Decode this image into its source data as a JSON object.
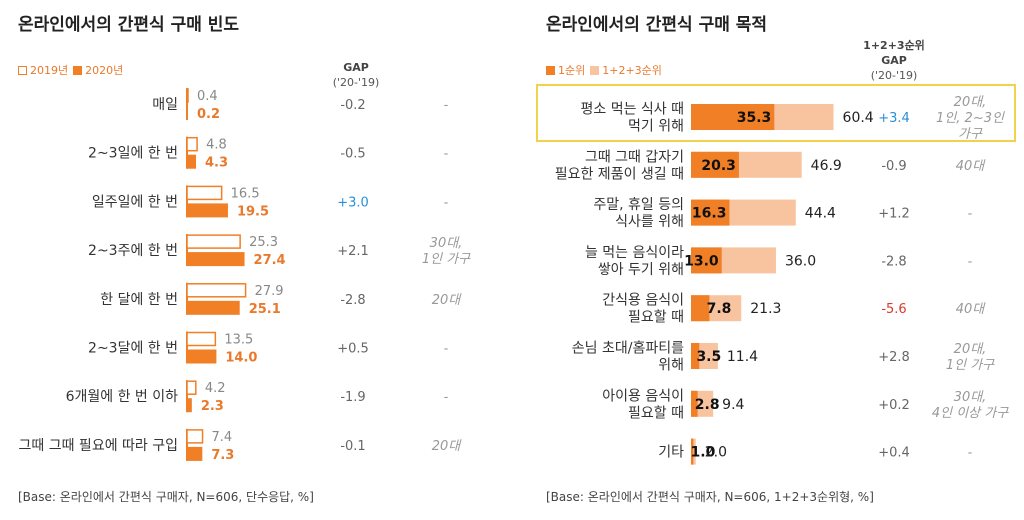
{
  "left": {
    "title": "온라인에서의 간편식 구매 빈도",
    "legend": [
      "2019년",
      "2020년"
    ],
    "gap_header": {
      "line1": "GAP",
      "line2": "('20-'19)"
    },
    "base": "[Base: 온라인에서 간편식 구매자, N=606, 단수응답, %]"
  },
  "right": {
    "title": "온라인에서의 간편식 구매 목적",
    "legend": [
      "1순위",
      "1+2+3순위"
    ],
    "gap_header": {
      "line1": "1+2+3순위",
      "line2": "GAP",
      "line3": "('20-'19)"
    },
    "base": "[Base: 온라인에서 간편식 구매자, N=606, 1+2+3순위형, %]"
  },
  "colors": {
    "accent": "#f07f26",
    "light": "#f8c4a0",
    "highlight": "#f2d14b",
    "positive": "#2a8fd8",
    "negative": "#d93a2b"
  },
  "chart_data": [
    {
      "type": "bar",
      "orientation": "horizontal",
      "title": "온라인에서의 간편식 구매 빈도",
      "categories": [
        "매일",
        "2~3일에 한 번",
        "일주일에 한 번",
        "2~3주에 한 번",
        "한 달에 한 번",
        "2~3달에 한 번",
        "6개월에 한 번 이하",
        "그때 그때 필요에 따라 구입"
      ],
      "series": [
        {
          "name": "2019년",
          "values": [
            0.4,
            4.8,
            16.5,
            25.3,
            27.9,
            13.5,
            4.2,
            7.4
          ]
        },
        {
          "name": "2020년",
          "values": [
            0.2,
            4.3,
            19.5,
            27.4,
            25.1,
            14.0,
            2.3,
            7.3
          ]
        }
      ],
      "gap": [
        "-0.2",
        "-0.5",
        "+3.0",
        "+2.1",
        "-2.8",
        "+0.5",
        "-1.9",
        "-0.1"
      ],
      "gap_sign": [
        "neutral",
        "neutral",
        "positive",
        "neutral",
        "neutral",
        "neutral",
        "neutral",
        "neutral"
      ],
      "notes": [
        [
          "-"
        ],
        [
          "-"
        ],
        [
          "-"
        ],
        [
          "30대,",
          "1인 가구"
        ],
        [
          "20대"
        ],
        [
          "-"
        ],
        [
          "-"
        ],
        [
          "20대"
        ]
      ],
      "xlim": [
        0,
        30
      ]
    },
    {
      "type": "bar",
      "orientation": "horizontal",
      "title": "온라인에서의 간편식 구매 목적",
      "categories": [
        [
          "평소 먹는 식사 때",
          "먹기 위해"
        ],
        [
          "그때 그때 갑자기",
          "필요한 제품이 생길 때"
        ],
        [
          "주말, 휴일 등의",
          "식사를 위해"
        ],
        [
          "늘 먹는 음식이라",
          "쌓아 두기 위해"
        ],
        [
          "간식용 음식이",
          "필요할 때"
        ],
        [
          "손님 초대/홈파티를",
          "위해"
        ],
        [
          "아이용 음식이",
          "필요할 때"
        ],
        [
          "기타"
        ]
      ],
      "series": [
        {
          "name": "1순위",
          "values": [
            35.3,
            20.3,
            16.3,
            13.0,
            7.8,
            3.5,
            2.8,
            1.0
          ]
        },
        {
          "name": "1+2+3순위",
          "values": [
            60.4,
            46.9,
            44.4,
            36.0,
            21.3,
            11.4,
            9.4,
            2.0
          ]
        }
      ],
      "gap": [
        "+3.4",
        "-0.9",
        "+1.2",
        "-2.8",
        "-5.6",
        "+2.8",
        "+0.2",
        "+0.4"
      ],
      "gap_sign": [
        "positive",
        "neutral",
        "neutral",
        "neutral",
        "negative",
        "neutral",
        "neutral",
        "neutral"
      ],
      "notes": [
        [
          "20대,",
          "1인, 2~3인",
          "가구"
        ],
        [
          "40대"
        ],
        [
          "-"
        ],
        [
          "-"
        ],
        [
          "40대"
        ],
        [
          "20대,",
          "1인 가구"
        ],
        [
          "30대,",
          "4인 이상 가구"
        ],
        [
          "-"
        ]
      ],
      "highlighted_category": 0,
      "xlim": [
        0,
        70
      ]
    }
  ]
}
